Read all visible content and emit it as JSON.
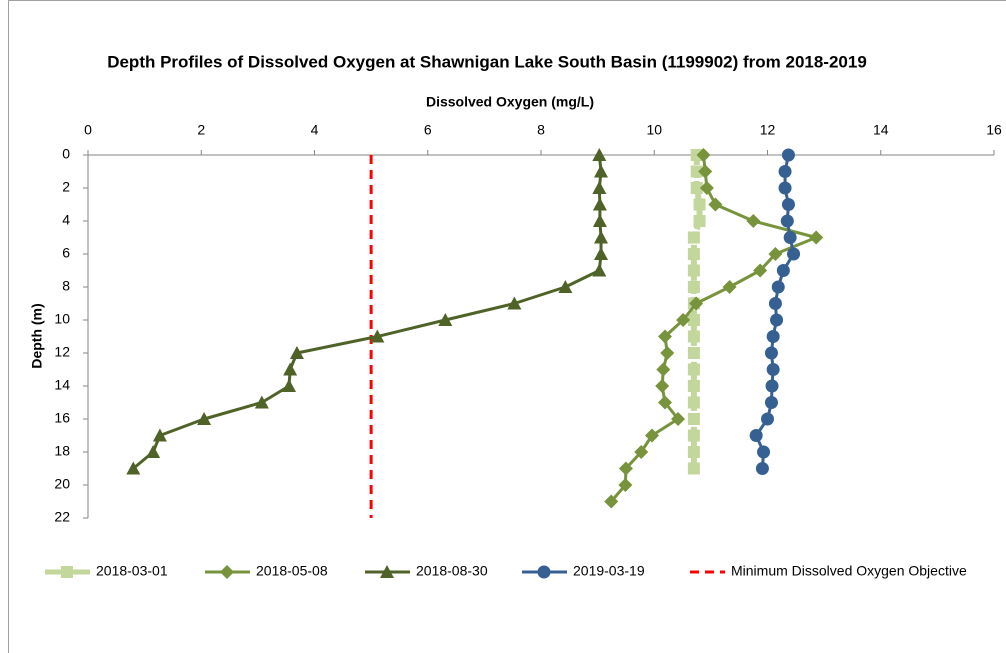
{
  "chart_data": {
    "type": "line",
    "title": "Depth Profiles of Dissolved Oxygen at Shawnigan Lake South Basin (1199902) from 2018-2019",
    "xlabel": "Dissolved Oxygen (mg/L)",
    "ylabel": "Depth (m)",
    "xlim": [
      0,
      16
    ],
    "xticks": [
      0,
      2,
      4,
      6,
      8,
      10,
      12,
      14,
      16
    ],
    "ylim": [
      0,
      22
    ],
    "yticks": [
      0,
      2,
      4,
      6,
      8,
      10,
      12,
      14,
      16,
      18,
      20,
      22
    ],
    "y_inverted": true,
    "grid": false,
    "legend": "bottom",
    "series": [
      {
        "name": "2018-03-01",
        "color": "#c3d69b",
        "marker": "square",
        "x": [
          10.75,
          10.75,
          10.75,
          10.8,
          10.8,
          10.7,
          10.7,
          10.7,
          10.7,
          10.7,
          10.7,
          10.7,
          10.7,
          10.7,
          10.7,
          10.7,
          10.7,
          10.7,
          10.7,
          10.7
        ],
        "y": [
          0,
          1,
          2,
          3,
          4,
          5,
          6,
          7,
          8,
          9,
          10,
          11,
          12,
          13,
          14,
          15,
          16,
          17,
          18,
          19
        ]
      },
      {
        "name": "2018-05-08",
        "color": "#77933c",
        "marker": "diamond",
        "x": [
          10.87,
          10.9,
          10.93,
          11.08,
          11.75,
          12.86,
          12.14,
          11.87,
          11.33,
          10.74,
          10.51,
          10.19,
          10.23,
          10.16,
          10.14,
          10.19,
          10.42,
          9.96,
          9.77,
          9.5,
          9.49,
          9.24
        ],
        "y": [
          0,
          1,
          2,
          3,
          4,
          5,
          6,
          7,
          8,
          9,
          10,
          11,
          12,
          13,
          14,
          15,
          16,
          17,
          18,
          19,
          20,
          21
        ]
      },
      {
        "name": "2018-08-30",
        "color": "#4f6228",
        "marker": "triangle",
        "x": [
          9.03,
          9.06,
          9.03,
          9.04,
          9.04,
          9.06,
          9.06,
          9.03,
          8.43,
          7.53,
          6.31,
          5.11,
          3.69,
          3.57,
          3.55,
          3.07,
          2.05,
          1.27,
          1.15,
          0.8
        ],
        "y": [
          0,
          1,
          2,
          3,
          4,
          5,
          6,
          7,
          8,
          9,
          10,
          11,
          12,
          13,
          14,
          15,
          16,
          17,
          18,
          19
        ]
      },
      {
        "name": "2019-03-19",
        "color": "#376092",
        "marker": "circle",
        "x": [
          12.37,
          12.31,
          12.31,
          12.37,
          12.35,
          12.4,
          12.46,
          12.28,
          12.19,
          12.14,
          12.16,
          12.1,
          12.07,
          12.1,
          12.08,
          12.07,
          12.0,
          11.8,
          11.93,
          11.91
        ],
        "y": [
          0,
          1,
          2,
          3,
          4,
          5,
          6,
          7,
          8,
          9,
          10,
          11,
          12,
          13,
          14,
          15,
          16,
          17,
          18,
          19
        ]
      }
    ],
    "reference": {
      "name": "Minimum Dissolved Oxygen Objective",
      "value": 5,
      "color": "#ff0000"
    }
  }
}
